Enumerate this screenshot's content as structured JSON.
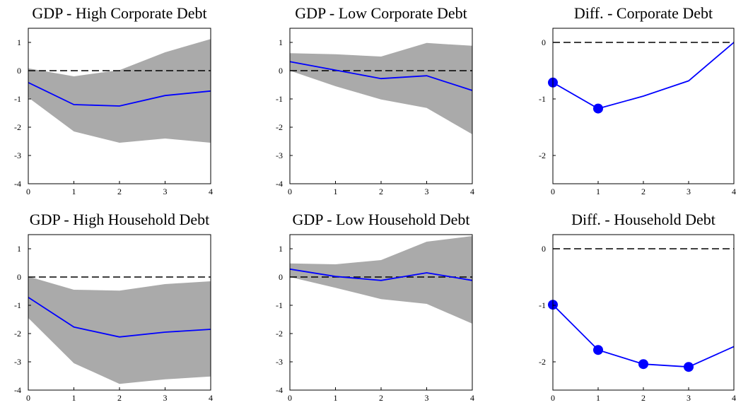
{
  "chart_data": [
    {
      "type": "line",
      "title": "GDP - High Corporate Debt",
      "x": [
        0,
        1,
        2,
        3,
        4
      ],
      "values": [
        -0.42,
        -1.2,
        -1.25,
        -0.88,
        -0.72
      ],
      "color": "#0000ff",
      "band": {
        "lower": [
          -0.95,
          -2.15,
          -2.55,
          -2.4,
          -2.55
        ],
        "upper": [
          0.08,
          -0.2,
          0.02,
          0.65,
          1.12
        ],
        "color": "#aaaaaa"
      },
      "markers": [
        false,
        false,
        false,
        false,
        false
      ],
      "hline": 0,
      "xlim": [
        0,
        4
      ],
      "xticks": [
        0,
        1,
        2,
        3,
        4
      ],
      "ylim": [
        -4,
        1.5
      ],
      "yticks": [
        -4,
        -3,
        -2,
        -1,
        0,
        1
      ]
    },
    {
      "type": "line",
      "title": "GDP - Low Corporate Debt",
      "x": [
        0,
        1,
        2,
        3,
        4
      ],
      "values": [
        0.32,
        0.02,
        -0.28,
        -0.18,
        -0.7
      ],
      "color": "#0000ff",
      "band": {
        "lower": [
          0.0,
          -0.55,
          -1.02,
          -1.32,
          -2.25
        ],
        "upper": [
          0.62,
          0.58,
          0.5,
          0.98,
          0.88
        ],
        "color": "#aaaaaa"
      },
      "markers": [
        false,
        false,
        false,
        false,
        false
      ],
      "hline": 0,
      "xlim": [
        0,
        4
      ],
      "xticks": [
        0,
        1,
        2,
        3,
        4
      ],
      "ylim": [
        -4,
        1.5
      ],
      "yticks": [
        -4,
        -3,
        -2,
        -1,
        0,
        1
      ]
    },
    {
      "type": "line",
      "title": "Diff. - Corporate Debt",
      "x": [
        0,
        1,
        2,
        3,
        4
      ],
      "values": [
        -0.71,
        -1.17,
        -0.95,
        -0.68,
        0.0
      ],
      "color": "#0000ff",
      "markers": [
        true,
        true,
        false,
        false,
        false
      ],
      "hline": 0,
      "xlim": [
        0,
        4
      ],
      "xticks": [
        0,
        1,
        2,
        3,
        4
      ],
      "ylim": [
        -2.5,
        0.25
      ],
      "yticks": [
        -2,
        -1,
        0
      ]
    },
    {
      "type": "line",
      "title": "GDP - High Household Debt",
      "x": [
        0,
        1,
        2,
        3,
        4
      ],
      "values": [
        -0.72,
        -1.77,
        -2.12,
        -1.95,
        -1.85
      ],
      "color": "#0000ff",
      "band": {
        "lower": [
          -1.45,
          -3.05,
          -3.78,
          -3.62,
          -3.52
        ],
        "upper": [
          0.02,
          -0.45,
          -0.48,
          -0.25,
          -0.15
        ],
        "color": "#aaaaaa"
      },
      "markers": [
        false,
        false,
        false,
        false,
        false
      ],
      "hline": 0,
      "xlim": [
        0,
        4
      ],
      "xticks": [
        0,
        1,
        2,
        3,
        4
      ],
      "ylim": [
        -4,
        1.5
      ],
      "yticks": [
        -4,
        -3,
        -2,
        -1,
        0,
        1
      ]
    },
    {
      "type": "line",
      "title": "GDP - Low Household Debt",
      "x": [
        0,
        1,
        2,
        3,
        4
      ],
      "values": [
        0.28,
        0.02,
        -0.12,
        0.15,
        -0.12
      ],
      "color": "#0000ff",
      "band": {
        "lower": [
          0.0,
          -0.38,
          -0.78,
          -0.95,
          -1.65
        ],
        "upper": [
          0.48,
          0.45,
          0.6,
          1.25,
          1.45
        ],
        "color": "#aaaaaa"
      },
      "markers": [
        false,
        false,
        false,
        false,
        false
      ],
      "hline": 0,
      "xlim": [
        0,
        4
      ],
      "xticks": [
        0,
        1,
        2,
        3,
        4
      ],
      "ylim": [
        -4,
        1.5
      ],
      "yticks": [
        -4,
        -3,
        -2,
        -1,
        0,
        1
      ]
    },
    {
      "type": "line",
      "title": "Diff. - Household Debt",
      "x": [
        0,
        1,
        2,
        3,
        4
      ],
      "values": [
        -0.99,
        -1.79,
        -2.04,
        -2.09,
        -1.73
      ],
      "color": "#0000ff",
      "markers": [
        true,
        true,
        true,
        true,
        false
      ],
      "hline": 0,
      "xlim": [
        0,
        4
      ],
      "xticks": [
        0,
        1,
        2,
        3,
        4
      ],
      "ylim": [
        -2.5,
        0.25
      ],
      "yticks": [
        -2,
        -1,
        0
      ]
    }
  ]
}
